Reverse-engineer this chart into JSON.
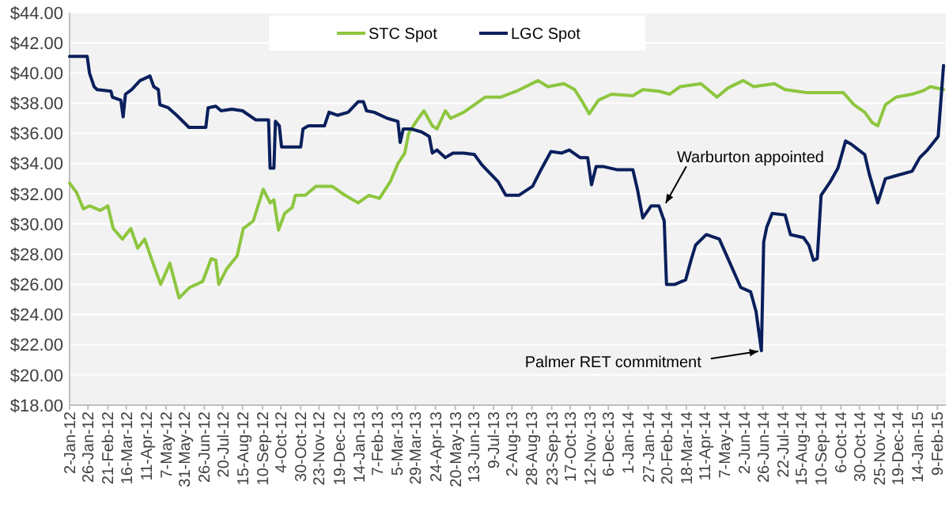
{
  "chart_data": {
    "type": "line",
    "xlim": [
      "2012-01-02",
      "2015-02-20"
    ],
    "xticks": [
      {
        "value": "2012-01-02",
        "label": "2-Jan-12"
      },
      {
        "value": "2012-01-26",
        "label": "26-Jan-12"
      },
      {
        "value": "2012-02-21",
        "label": "21-Feb-12"
      },
      {
        "value": "2012-03-16",
        "label": "16-Mar-12"
      },
      {
        "value": "2012-04-11",
        "label": "11-Apr-12"
      },
      {
        "value": "2012-05-07",
        "label": "7-May-12"
      },
      {
        "value": "2012-05-31",
        "label": "31-May-12"
      },
      {
        "value": "2012-06-26",
        "label": "26-Jun-12"
      },
      {
        "value": "2012-07-20",
        "label": "20-Jul-12"
      },
      {
        "value": "2012-08-15",
        "label": "15-Aug-12"
      },
      {
        "value": "2012-09-10",
        "label": "10-Sep-12"
      },
      {
        "value": "2012-10-04",
        "label": "4-Oct-12"
      },
      {
        "value": "2012-10-30",
        "label": "30-Oct-12"
      },
      {
        "value": "2012-11-23",
        "label": "23-Nov-12"
      },
      {
        "value": "2012-12-19",
        "label": "19-Dec-12"
      },
      {
        "value": "2013-01-14",
        "label": "14-Jan-13"
      },
      {
        "value": "2013-02-07",
        "label": "7-Feb-13"
      },
      {
        "value": "2013-03-05",
        "label": "5-Mar-13"
      },
      {
        "value": "2013-03-29",
        "label": "29-Mar-13"
      },
      {
        "value": "2013-04-24",
        "label": "24-Apr-13"
      },
      {
        "value": "2013-05-20",
        "label": "20-May-13"
      },
      {
        "value": "2013-06-13",
        "label": "13-Jun-13"
      },
      {
        "value": "2013-07-09",
        "label": "9-Jul-13"
      },
      {
        "value": "2013-08-02",
        "label": "2-Aug-13"
      },
      {
        "value": "2013-08-28",
        "label": "28-Aug-13"
      },
      {
        "value": "2013-09-23",
        "label": "23-Sep-13"
      },
      {
        "value": "2013-10-17",
        "label": "17-Oct-13"
      },
      {
        "value": "2013-11-12",
        "label": "12-Nov-13"
      },
      {
        "value": "2013-12-06",
        "label": "6-Dec-13"
      },
      {
        "value": "2014-01-01",
        "label": "1-Jan-14"
      },
      {
        "value": "2014-01-27",
        "label": "27-Jan-14"
      },
      {
        "value": "2014-02-20",
        "label": "20-Feb-14"
      },
      {
        "value": "2014-03-18",
        "label": "18-Mar-14"
      },
      {
        "value": "2014-04-11",
        "label": "11-Apr-14"
      },
      {
        "value": "2014-05-07",
        "label": "7-May-14"
      },
      {
        "value": "2014-06-02",
        "label": "2-Jun-14"
      },
      {
        "value": "2014-06-26",
        "label": "26-Jun-14"
      },
      {
        "value": "2014-07-22",
        "label": "22-Jul-14"
      },
      {
        "value": "2014-08-15",
        "label": "15-Aug-14"
      },
      {
        "value": "2014-09-10",
        "label": "10-Sep-14"
      },
      {
        "value": "2014-10-06",
        "label": "6-Oct-14"
      },
      {
        "value": "2014-10-30",
        "label": "30-Oct-14"
      },
      {
        "value": "2014-11-25",
        "label": "25-Nov-14"
      },
      {
        "value": "2014-12-19",
        "label": "19-Dec-14"
      },
      {
        "value": "2015-01-14",
        "label": "14-Jan-15"
      },
      {
        "value": "2015-02-09",
        "label": "9-Feb-15"
      }
    ],
    "ylim": [
      18,
      44
    ],
    "yticks": [
      {
        "value": 18,
        "label": "$18.00"
      },
      {
        "value": 20,
        "label": "$20.00"
      },
      {
        "value": 22,
        "label": "$22.00"
      },
      {
        "value": 24,
        "label": "$24.00"
      },
      {
        "value": 26,
        "label": "$26.00"
      },
      {
        "value": 28,
        "label": "$28.00"
      },
      {
        "value": 30,
        "label": "$30.00"
      },
      {
        "value": 32,
        "label": "$32.00"
      },
      {
        "value": 34,
        "label": "$34.00"
      },
      {
        "value": 36,
        "label": "$36.00"
      },
      {
        "value": 38,
        "label": "$38.00"
      },
      {
        "value": 40,
        "label": "$40.00"
      },
      {
        "value": 42,
        "label": "$42.00"
      },
      {
        "value": 44,
        "label": "$44.00"
      }
    ],
    "grid": "y",
    "legend": "top",
    "marker": "none",
    "line_style": "solid",
    "series": [
      {
        "name": "STC Spot",
        "color": "#8dc63f",
        "x": [
          "2012-01-02",
          "2012-01-11",
          "2012-01-20",
          "2012-01-28",
          "2012-02-11",
          "2012-02-21",
          "2012-02-28",
          "2012-03-11",
          "2012-03-22",
          "2012-03-31",
          "2012-04-09",
          "2012-04-20",
          "2012-04-30",
          "2012-05-12",
          "2012-05-24",
          "2012-06-07",
          "2012-06-24",
          "2012-07-05",
          "2012-07-11",
          "2012-07-15",
          "2012-07-25",
          "2012-08-08",
          "2012-08-16",
          "2012-08-29",
          "2012-09-11",
          "2012-09-20",
          "2012-09-25",
          "2012-10-01",
          "2012-10-09",
          "2012-10-19",
          "2012-10-23",
          "2012-11-05",
          "2012-11-19",
          "2012-12-10",
          "2012-12-24",
          "2013-01-13",
          "2013-01-27",
          "2013-02-10",
          "2013-02-24",
          "2013-03-06",
          "2013-03-15",
          "2013-03-20",
          "2013-03-30",
          "2013-04-09",
          "2013-04-20",
          "2013-04-26",
          "2013-05-07",
          "2013-05-14",
          "2013-05-31",
          "2013-06-14",
          "2013-06-28",
          "2013-07-18",
          "2013-08-08",
          "2013-09-05",
          "2013-09-18",
          "2013-10-09",
          "2013-10-23",
          "2013-11-02",
          "2013-11-11",
          "2013-11-23",
          "2013-12-10",
          "2014-01-07",
          "2014-01-20",
          "2014-02-10",
          "2014-02-24",
          "2014-03-10",
          "2014-04-06",
          "2014-04-27",
          "2014-05-11",
          "2014-05-31",
          "2014-06-14",
          "2014-07-11",
          "2014-07-25",
          "2014-08-22",
          "2014-09-18",
          "2014-10-09",
          "2014-10-23",
          "2014-11-06",
          "2014-11-16",
          "2014-11-23",
          "2014-12-03",
          "2014-12-17",
          "2015-01-07",
          "2015-01-20",
          "2015-01-31",
          "2015-02-17"
        ],
        "values": [
          32.7,
          32.1,
          31.0,
          31.2,
          30.9,
          31.2,
          29.7,
          29.0,
          29.7,
          28.4,
          29.0,
          27.4,
          26.0,
          27.4,
          25.1,
          25.8,
          26.2,
          27.7,
          27.6,
          26.0,
          27.0,
          27.9,
          29.7,
          30.2,
          32.3,
          31.4,
          31.6,
          29.6,
          30.7,
          31.1,
          31.9,
          31.9,
          32.5,
          32.5,
          32.0,
          31.4,
          31.9,
          31.7,
          32.8,
          34.0,
          34.7,
          36.0,
          36.8,
          37.5,
          36.5,
          36.3,
          37.5,
          37.0,
          37.4,
          37.9,
          38.4,
          38.4,
          38.8,
          39.5,
          39.1,
          39.3,
          38.9,
          38.1,
          37.3,
          38.2,
          38.6,
          38.5,
          38.9,
          38.8,
          38.6,
          39.1,
          39.3,
          38.4,
          39.0,
          39.5,
          39.1,
          39.3,
          38.9,
          38.7,
          38.7,
          38.7,
          37.9,
          37.4,
          36.7,
          36.5,
          37.9,
          38.4,
          38.6,
          38.8,
          39.1,
          38.9
        ]
      },
      {
        "name": "LGC Spot",
        "color": "#0a1f5c",
        "x": [
          "2012-01-02",
          "2012-01-25",
          "2012-01-28",
          "2012-02-03",
          "2012-02-07",
          "2012-02-25",
          "2012-02-27",
          "2012-03-09",
          "2012-03-12",
          "2012-03-15",
          "2012-03-23",
          "2012-04-03",
          "2012-04-16",
          "2012-04-21",
          "2012-04-27",
          "2012-04-29",
          "2012-05-10",
          "2012-05-21",
          "2012-05-31",
          "2012-06-06",
          "2012-06-28",
          "2012-07-01",
          "2012-07-11",
          "2012-07-18",
          "2012-08-01",
          "2012-08-15",
          "2012-09-01",
          "2012-09-18",
          "2012-09-20",
          "2012-09-25",
          "2012-09-27",
          "2012-10-02",
          "2012-10-05",
          "2012-10-30",
          "2012-11-02",
          "2012-11-09",
          "2012-11-30",
          "2012-12-06",
          "2012-12-17",
          "2012-12-31",
          "2013-01-13",
          "2013-01-20",
          "2013-01-24",
          "2013-02-03",
          "2013-02-20",
          "2013-03-06",
          "2013-03-09",
          "2013-03-13",
          "2013-03-23",
          "2013-04-06",
          "2013-04-16",
          "2013-04-20",
          "2013-04-26",
          "2013-05-07",
          "2013-05-17",
          "2013-05-31",
          "2013-06-14",
          "2013-06-24",
          "2013-07-15",
          "2013-07-25",
          "2013-08-11",
          "2013-08-29",
          "2013-09-08",
          "2013-09-22",
          "2013-10-06",
          "2013-10-16",
          "2013-10-30",
          "2013-11-09",
          "2013-11-14",
          "2013-11-20",
          "2013-11-30",
          "2013-12-17",
          "2014-01-07",
          "2014-01-13",
          "2014-01-20",
          "2014-01-31",
          "2014-02-10",
          "2014-02-17",
          "2014-02-20",
          "2014-03-03",
          "2014-03-17",
          "2014-03-24",
          "2014-03-30",
          "2014-04-13",
          "2014-04-30",
          "2014-05-14",
          "2014-05-28",
          "2014-06-10",
          "2014-06-17",
          "2014-06-24",
          "2014-06-27",
          "2014-07-01",
          "2014-07-08",
          "2014-07-25",
          "2014-08-01",
          "2014-08-18",
          "2014-08-25",
          "2014-08-31",
          "2014-09-05",
          "2014-09-10",
          "2014-09-22",
          "2014-10-02",
          "2014-10-12",
          "2014-10-19",
          "2014-11-06",
          "2014-11-12",
          "2014-11-23",
          "2014-12-03",
          "2014-12-17",
          "2015-01-07",
          "2015-01-17",
          "2015-01-27",
          "2015-02-10",
          "2015-02-17"
        ],
        "values": [
          41.1,
          41.1,
          40.0,
          39.1,
          38.9,
          38.8,
          38.4,
          38.2,
          37.1,
          38.6,
          38.9,
          39.5,
          39.8,
          39.1,
          38.9,
          37.9,
          37.7,
          37.2,
          36.7,
          36.4,
          36.4,
          37.7,
          37.8,
          37.5,
          37.6,
          37.5,
          36.9,
          36.9,
          33.7,
          33.7,
          36.8,
          36.5,
          35.1,
          35.1,
          36.3,
          36.5,
          36.5,
          37.4,
          37.2,
          37.4,
          38.1,
          38.1,
          37.5,
          37.4,
          37.0,
          36.8,
          35.4,
          36.3,
          36.3,
          36.1,
          35.8,
          34.7,
          34.9,
          34.4,
          34.7,
          34.7,
          34.6,
          33.9,
          32.8,
          31.9,
          31.9,
          32.5,
          33.5,
          34.8,
          34.7,
          34.9,
          34.4,
          34.4,
          32.6,
          33.8,
          33.8,
          33.6,
          33.6,
          32.3,
          30.4,
          31.2,
          31.2,
          30.2,
          26.0,
          26.0,
          26.3,
          27.6,
          28.6,
          29.3,
          29.0,
          27.4,
          25.8,
          25.5,
          24.2,
          21.6,
          28.8,
          29.8,
          30.7,
          30.6,
          29.3,
          29.1,
          28.6,
          27.6,
          27.7,
          31.9,
          32.8,
          33.7,
          35.5,
          35.3,
          34.6,
          33.3,
          31.4,
          33.0,
          33.2,
          33.5,
          34.4,
          34.9,
          35.8,
          40.5
        ]
      }
    ],
    "annotations": [
      {
        "text": "Warburton appointed",
        "x": "2014-02-17",
        "y": 31.2
      },
      {
        "text": "Palmer RET commitment",
        "x": "2014-06-24",
        "y": 21.6
      }
    ]
  }
}
